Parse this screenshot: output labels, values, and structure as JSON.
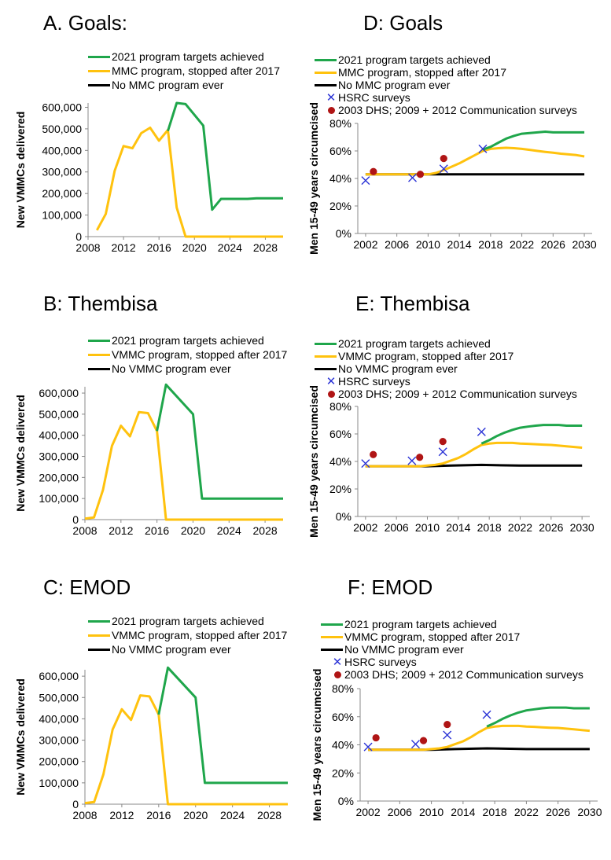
{
  "colors": {
    "green": "#1fa64b",
    "yellow": "#ffc20e",
    "black": "#000000",
    "hsrc": "#2b33d6",
    "dhs": "#b01515"
  },
  "chart_data": [
    {
      "id": "A",
      "type": "line",
      "title": "A. Goals:",
      "ylabel": "New VMMCs delivered",
      "xlabel": "",
      "xlim": [
        2008,
        2030
      ],
      "ylim": [
        0,
        620000
      ],
      "xticks": [
        2008,
        2012,
        2016,
        2020,
        2024,
        2028
      ],
      "yticks": [
        0,
        100000,
        200000,
        300000,
        400000,
        500000,
        600000
      ],
      "ytick_labels": [
        "0",
        "100,000",
        "200,000",
        "300,000",
        "400,000",
        "500,000",
        "600,000"
      ],
      "series": [
        {
          "name": "2021 program targets achieved",
          "color": "green",
          "x": [
            2017,
            2018,
            2019,
            2021,
            2022,
            2023,
            2026,
            2027,
            2030
          ],
          "y": [
            490000,
            620000,
            615000,
            515000,
            125000,
            175000,
            175000,
            178000,
            178000
          ]
        },
        {
          "name": "MMC program, stopped after 2017",
          "color": "yellow",
          "x": [
            2009,
            2010,
            2011,
            2012,
            2013,
            2014,
            2015,
            2016,
            2017,
            2018,
            2019,
            2030
          ],
          "y": [
            30000,
            105000,
            305000,
            420000,
            410000,
            480000,
            505000,
            445000,
            495000,
            135000,
            0,
            0
          ]
        },
        {
          "name": "No MMC program ever",
          "color": "black",
          "x": [],
          "y": []
        }
      ]
    },
    {
      "id": "B",
      "type": "line",
      "title": "B: Thembisa",
      "ylabel": "New VMMCs delivered",
      "xlabel": "",
      "xlim": [
        2008,
        2030
      ],
      "ylim": [
        0,
        630000
      ],
      "xticks": [
        2008,
        2012,
        2016,
        2020,
        2024,
        2028
      ],
      "yticks": [
        0,
        100000,
        200000,
        300000,
        400000,
        500000,
        600000
      ],
      "ytick_labels": [
        "0",
        "100,000",
        "200,000",
        "300,000",
        "400,000",
        "500,000",
        "600,000"
      ],
      "series": [
        {
          "name": "2021 program targets achieved",
          "color": "green",
          "x": [
            2016,
            2017,
            2020,
            2021,
            2030
          ],
          "y": [
            420000,
            640000,
            500000,
            100000,
            100000
          ]
        },
        {
          "name": "VMMC program, stopped after 2017",
          "color": "yellow",
          "x": [
            2008,
            2009,
            2010,
            2011,
            2012,
            2013,
            2014,
            2015,
            2016,
            2017,
            2030
          ],
          "y": [
            5000,
            10000,
            140000,
            350000,
            445000,
            395000,
            510000,
            505000,
            420000,
            0,
            0
          ]
        },
        {
          "name": "No VMMC program ever",
          "color": "black",
          "x": [],
          "y": []
        }
      ]
    },
    {
      "id": "C",
      "type": "line",
      "title": "C: EMOD",
      "ylabel": "New VMMCs delivered",
      "xlabel": "",
      "xlim": [
        2008,
        2030
      ],
      "ylim": [
        0,
        630000
      ],
      "xticks": [
        2008,
        2012,
        2016,
        2020,
        2024,
        2028
      ],
      "yticks": [
        0,
        100000,
        200000,
        300000,
        400000,
        500000,
        600000
      ],
      "ytick_labels": [
        "0",
        "100,000",
        "200,000",
        "300,000",
        "400,000",
        "500,000",
        "600,000"
      ],
      "series": [
        {
          "name": "2021 program targets achieved",
          "color": "green",
          "x": [
            2016,
            2017,
            2020,
            2021,
            2030
          ],
          "y": [
            420000,
            640000,
            500000,
            100000,
            100000
          ]
        },
        {
          "name": "VMMC program, stopped after 2017",
          "color": "yellow",
          "x": [
            2008,
            2009,
            2010,
            2011,
            2012,
            2013,
            2014,
            2015,
            2016,
            2017,
            2030
          ],
          "y": [
            5000,
            10000,
            140000,
            350000,
            445000,
            395000,
            510000,
            505000,
            420000,
            0,
            0
          ]
        },
        {
          "name": "No VMMC program ever",
          "color": "black",
          "x": [],
          "y": []
        }
      ]
    },
    {
      "id": "D",
      "type": "line",
      "title": "D: Goals",
      "ylabel": "Men 15-49 years circumcised",
      "xlabel": "",
      "xlim": [
        2001,
        2031
      ],
      "ylim": [
        0,
        80
      ],
      "xticks": [
        2002,
        2006,
        2010,
        2014,
        2018,
        2022,
        2026,
        2030
      ],
      "yticks": [
        0,
        20,
        40,
        60,
        80
      ],
      "ytick_labels": [
        "0%",
        "20%",
        "40%",
        "60%",
        "80%"
      ],
      "series": [
        {
          "name": "2021 program targets achieved",
          "color": "green",
          "x": [
            2017,
            2018,
            2019,
            2020,
            2021,
            2022,
            2023,
            2024,
            2025,
            2026,
            2027,
            2028,
            2029,
            2030
          ],
          "y": [
            61,
            63,
            66,
            69,
            71,
            72.5,
            73,
            73.5,
            74,
            73.5,
            73.5,
            73.5,
            73.5,
            73.5
          ]
        },
        {
          "name": "MMC program, stopped after 2017",
          "color": "yellow",
          "x": [
            2002,
            2008,
            2009,
            2010,
            2011,
            2012,
            2013,
            2014,
            2015,
            2016,
            2017,
            2018,
            2019,
            2020,
            2021,
            2022,
            2023,
            2024,
            2025,
            2026,
            2027,
            2028,
            2029,
            2030
          ],
          "y": [
            43,
            43,
            43,
            43,
            44,
            46,
            48.5,
            51,
            54,
            57,
            60,
            61.5,
            62,
            62.3,
            62,
            61.5,
            60.8,
            60,
            59.3,
            58.7,
            58,
            57.5,
            57,
            56
          ]
        },
        {
          "name": "No MMC program ever",
          "color": "black",
          "x": [
            2002,
            2030
          ],
          "y": [
            43,
            43
          ]
        },
        {
          "name": "HSRC surveys",
          "color": "hsrc",
          "marker": "x",
          "x": [
            2002,
            2008,
            2012,
            2017
          ],
          "y": [
            38.5,
            40.5,
            47,
            61.5
          ]
        },
        {
          "name": "2003 DHS; 2009 + 2012 Communication surveys",
          "color": "dhs",
          "marker": "dot",
          "x": [
            2003,
            2009,
            2012
          ],
          "y": [
            45,
            43,
            54.5
          ]
        }
      ]
    },
    {
      "id": "E",
      "type": "line",
      "title": "E: Thembisa",
      "ylabel": "Men 15-49 years circumcised",
      "xlabel": "",
      "xlim": [
        2001,
        2031
      ],
      "ylim": [
        0,
        80
      ],
      "xticks": [
        2002,
        2006,
        2010,
        2014,
        2018,
        2022,
        2026,
        2030
      ],
      "yticks": [
        0,
        20,
        40,
        60,
        80
      ],
      "ytick_labels": [
        "0%",
        "20%",
        "40%",
        "60%",
        "80%"
      ],
      "series": [
        {
          "name": "2021 program targets achieved",
          "color": "green",
          "x": [
            2017,
            2018,
            2019,
            2020,
            2021,
            2022,
            2023,
            2024,
            2025,
            2026,
            2027,
            2028,
            2029,
            2030
          ],
          "y": [
            53,
            55.5,
            58.5,
            61,
            63,
            64.5,
            65.3,
            66,
            66.5,
            66.5,
            66.5,
            66,
            66,
            66
          ]
        },
        {
          "name": "VMMC program, stopped after 2017",
          "color": "yellow",
          "x": [
            2002,
            2009,
            2010,
            2011,
            2012,
            2013,
            2014,
            2015,
            2016,
            2017,
            2018,
            2019,
            2020,
            2021,
            2022,
            2023,
            2024,
            2025,
            2026,
            2027,
            2028,
            2029,
            2030
          ],
          "y": [
            36.5,
            36.5,
            37,
            37.5,
            38.5,
            40.5,
            42.5,
            45.5,
            49,
            52,
            53,
            53.5,
            53.5,
            53.5,
            53,
            52.8,
            52.5,
            52.2,
            52,
            51.5,
            51,
            50.5,
            50
          ]
        },
        {
          "name": "No VMMC program ever",
          "color": "black",
          "x": [
            2002,
            2010,
            2013,
            2017,
            2022,
            2030
          ],
          "y": [
            36.5,
            36.5,
            37,
            37.5,
            37,
            37
          ]
        },
        {
          "name": "HSRC surveys",
          "color": "hsrc",
          "marker": "x",
          "x": [
            2002,
            2008,
            2012,
            2017
          ],
          "y": [
            38.5,
            40.5,
            47,
            61.5
          ]
        },
        {
          "name": "2003 DHS; 2009 + 2012 Communication surveys",
          "color": "dhs",
          "marker": "dot",
          "x": [
            2003,
            2009,
            2012
          ],
          "y": [
            45,
            43,
            54.5
          ]
        }
      ]
    },
    {
      "id": "F",
      "type": "line",
      "title": "F: EMOD",
      "ylabel": "Men 15-49 years circumcised",
      "xlabel": "",
      "xlim": [
        2001,
        2031
      ],
      "ylim": [
        0,
        80
      ],
      "xticks": [
        2002,
        2006,
        2010,
        2014,
        2018,
        2022,
        2026,
        2030
      ],
      "yticks": [
        0,
        20,
        40,
        60,
        80
      ],
      "ytick_labels": [
        "0%",
        "20%",
        "40%",
        "60%",
        "80%"
      ],
      "series": [
        {
          "name": "2021 program targets achieved",
          "color": "green",
          "x": [
            2017,
            2018,
            2019,
            2020,
            2021,
            2022,
            2023,
            2024,
            2025,
            2026,
            2027,
            2028,
            2029,
            2030
          ],
          "y": [
            53,
            55.5,
            58.5,
            61,
            63,
            64.5,
            65.3,
            66,
            66.5,
            66.5,
            66.5,
            66,
            66,
            66
          ]
        },
        {
          "name": "VMMC program, stopped after 2017",
          "color": "yellow",
          "x": [
            2002,
            2009,
            2010,
            2011,
            2012,
            2013,
            2014,
            2015,
            2016,
            2017,
            2018,
            2019,
            2020,
            2021,
            2022,
            2023,
            2024,
            2025,
            2026,
            2027,
            2028,
            2029,
            2030
          ],
          "y": [
            36.5,
            36.5,
            37,
            37.5,
            38.5,
            40.5,
            42.5,
            45.5,
            49,
            52,
            53,
            53.5,
            53.5,
            53.5,
            53,
            52.8,
            52.5,
            52.2,
            52,
            51.5,
            51,
            50.5,
            50
          ]
        },
        {
          "name": "No VMMC program ever",
          "color": "black",
          "x": [
            2002,
            2010,
            2013,
            2017,
            2022,
            2030
          ],
          "y": [
            36.5,
            36.5,
            37,
            37.5,
            37,
            37
          ]
        },
        {
          "name": "HSRC surveys",
          "color": "hsrc",
          "marker": "x",
          "x": [
            2002,
            2008,
            2012,
            2017
          ],
          "y": [
            38.5,
            40.5,
            47,
            61.5
          ]
        },
        {
          "name": "2003 DHS; 2009 + 2012 Communication surveys",
          "color": "dhs",
          "marker": "dot",
          "x": [
            2003,
            2009,
            2012
          ],
          "y": [
            45,
            43,
            54.5
          ]
        }
      ]
    }
  ]
}
